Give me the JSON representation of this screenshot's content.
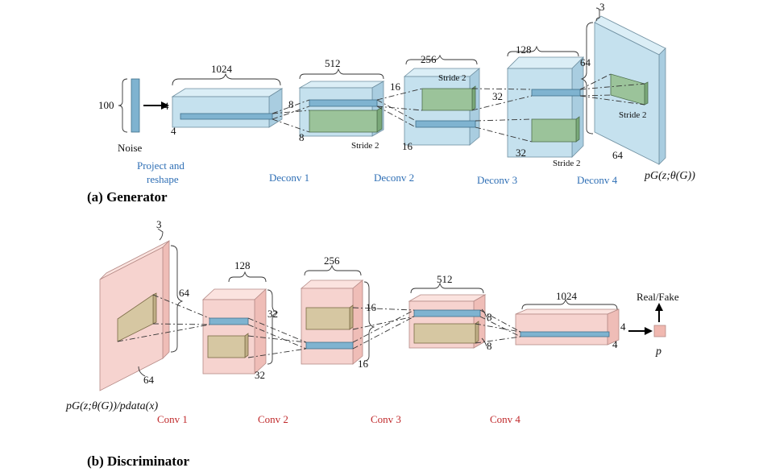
{
  "generator": {
    "caption": "(a) Generator",
    "noise_label": "Noise",
    "noise_dim": "100",
    "project_label_line1": "Project and",
    "project_label_line2": "reshape",
    "project_dims": {
      "top": "1024",
      "left": "4",
      "bottom": "4"
    },
    "deconv1": {
      "label": "Deconv 1",
      "top": "512",
      "left": "8",
      "bottom": "8",
      "stride": "Stride 2"
    },
    "deconv2": {
      "label": "Deconv 2",
      "top": "256",
      "left": "16",
      "bottom": "16",
      "stride": "Stride 2"
    },
    "deconv3": {
      "label": "Deconv 3",
      "top": "128",
      "left": "32",
      "bottom": "32",
      "stride": "Stride 2"
    },
    "deconv4": {
      "label": "Deconv 4",
      "top": "3",
      "left": "64",
      "bottom": "64",
      "stride": "Stride 2"
    },
    "output_formula": "pG(z;θ(G))"
  },
  "discriminator": {
    "caption": "(b) Discriminator",
    "input_formula": "pG(z;θ(G))/pdata(x)",
    "input_dims": {
      "top": "3",
      "right": "64",
      "bottom": "64"
    },
    "conv1": {
      "label": "Conv 1",
      "top": "128",
      "right": "32",
      "bottom": "32"
    },
    "conv2": {
      "label": "Conv 2",
      "top": "256",
      "right": "16",
      "bottom": "16"
    },
    "conv3": {
      "label": "Conv 3",
      "top": "512",
      "right": "8",
      "bottom": "8"
    },
    "conv4": {
      "label": "Conv 4",
      "top": "1024",
      "right": "4",
      "bottom": "4"
    },
    "output_label": "Real/Fake",
    "output_symbol": "p"
  },
  "colors": {
    "generator_volume": "#c5e1ee",
    "discriminator_volume": "#f6d3cf",
    "generator_filter": "#9bc39a",
    "discriminator_filter": "#d6c7a2",
    "generator_label": "#2f6fb5",
    "discriminator_label": "#c0292b"
  }
}
